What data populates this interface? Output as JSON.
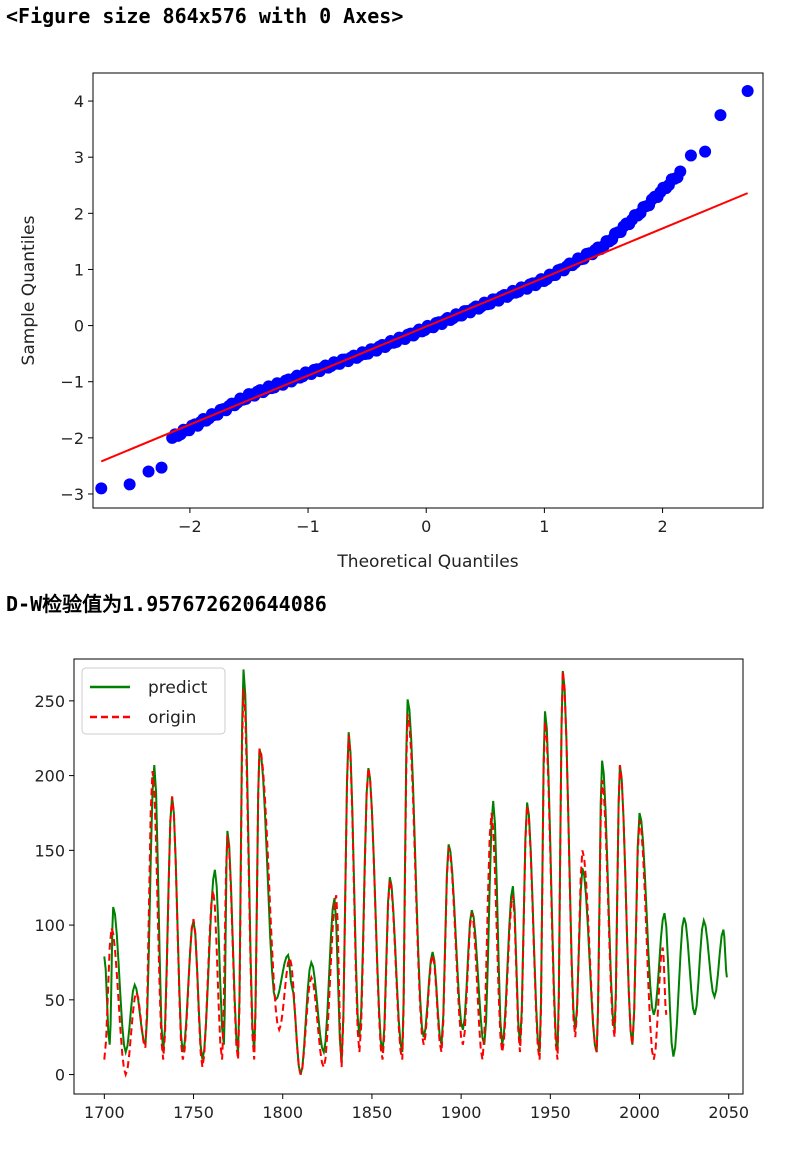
{
  "output": {
    "figure_text": "<Figure size 864x576 with 0 Axes>",
    "dw_text": "D-W检验值为1.957672620644086"
  },
  "chart_data": [
    {
      "type": "scatter",
      "xlabel": "Theoretical Quantiles",
      "ylabel": "Sample Quantiles",
      "xlim": [
        -2.82,
        2.85
      ],
      "ylim": [
        -3.25,
        4.5
      ],
      "xticks": [
        -2,
        -1,
        0,
        1,
        2
      ],
      "yticks": [
        -3,
        -2,
        -1,
        0,
        1,
        2,
        3,
        4
      ],
      "grid": false,
      "points_color": "#0000ff",
      "line_color": "#ff0000",
      "reference_line": {
        "x": [
          -2.75,
          2.72
        ],
        "y": [
          -2.42,
          2.36
        ]
      },
      "tail_points": {
        "x": [
          -2.75,
          -2.51,
          -2.35,
          -2.24,
          2.24,
          2.36,
          2.49,
          2.72
        ],
        "y": [
          -2.9,
          -2.83,
          -2.6,
          -2.53,
          3.03,
          3.1,
          3.75,
          4.18
        ]
      },
      "body_quantiles": {
        "x_range": [
          -2.15,
          2.15
        ],
        "knots": [
          [
            -2.15,
            -2.0
          ],
          [
            -1.5,
            -1.25
          ],
          [
            -1.0,
            -0.85
          ],
          [
            -0.5,
            -0.48
          ],
          [
            0.0,
            -0.05
          ],
          [
            0.5,
            0.38
          ],
          [
            1.0,
            0.82
          ],
          [
            1.5,
            1.42
          ],
          [
            1.8,
            2.0
          ],
          [
            2.15,
            2.72
          ]
        ]
      }
    },
    {
      "type": "line",
      "xlim": [
        1683,
        2058
      ],
      "ylim": [
        -13,
        278
      ],
      "xticks": [
        1700,
        1750,
        1800,
        1850,
        1900,
        1950,
        2000,
        2050
      ],
      "yticks": [
        0,
        50,
        100,
        150,
        200,
        250
      ],
      "legend_position": "upper left",
      "series": [
        {
          "name": "predict",
          "color": "#008000",
          "style": "solid",
          "peaks": [
            [
              1700,
              79
            ],
            [
              1705,
              112
            ],
            [
              1717,
              60
            ],
            [
              1728,
              207
            ],
            [
              1738,
              186
            ],
            [
              1750,
              103
            ],
            [
              1762,
              137
            ],
            [
              1769,
              163
            ],
            [
              1778,
              271
            ],
            [
              1787,
              218
            ],
            [
              1803,
              80
            ],
            [
              1805,
              60
            ],
            [
              1816,
              75
            ],
            [
              1829,
              118
            ],
            [
              1837,
              229
            ],
            [
              1848,
              205
            ],
            [
              1860,
              132
            ],
            [
              1870,
              251
            ],
            [
              1884,
              82
            ],
            [
              1893,
              154
            ],
            [
              1906,
              110
            ],
            [
              1918,
              183
            ],
            [
              1929,
              126
            ],
            [
              1937,
              182
            ],
            [
              1947,
              243
            ],
            [
              1957,
              270
            ],
            [
              1968,
              138
            ],
            [
              1979,
              210
            ],
            [
              1989,
              207
            ],
            [
              2000,
              175
            ],
            [
              2014,
              108
            ],
            [
              2025,
              105
            ],
            [
              2036,
              103
            ],
            [
              2047,
              97
            ]
          ],
          "troughs": [
            [
              1703,
              20
            ],
            [
              1712,
              15
            ],
            [
              1723,
              20
            ],
            [
              1733,
              15
            ],
            [
              1744,
              15
            ],
            [
              1755,
              10
            ],
            [
              1767,
              20
            ],
            [
              1775,
              15
            ],
            [
              1784,
              15
            ],
            [
              1796,
              50
            ],
            [
              1810,
              0
            ],
            [
              1823,
              15
            ],
            [
              1833,
              8
            ],
            [
              1843,
              25
            ],
            [
              1856,
              15
            ],
            [
              1867,
              15
            ],
            [
              1879,
              25
            ],
            [
              1889,
              20
            ],
            [
              1901,
              30
            ],
            [
              1913,
              20
            ],
            [
              1923,
              20
            ],
            [
              1933,
              20
            ],
            [
              1944,
              15
            ],
            [
              1954,
              15
            ],
            [
              1964,
              30
            ],
            [
              1976,
              15
            ],
            [
              1986,
              30
            ],
            [
              1996,
              20
            ],
            [
              2008,
              40
            ],
            [
              2019,
              12
            ],
            [
              2031,
              40
            ],
            [
              2042,
              52
            ],
            [
              2049,
              65
            ]
          ]
        },
        {
          "name": "origin",
          "color": "#ff0000",
          "style": "dashed",
          "peaks": [
            [
              1704,
              98
            ],
            [
              1718,
              55
            ],
            [
              1727,
              203
            ],
            [
              1738,
              186
            ],
            [
              1750,
              104
            ],
            [
              1761,
              123
            ],
            [
              1769,
              160
            ],
            [
              1778,
              258
            ],
            [
              1787,
              218
            ],
            [
              1804,
              78
            ],
            [
              1816,
              65
            ],
            [
              1830,
              120
            ],
            [
              1837,
              227
            ],
            [
              1848,
              205
            ],
            [
              1860,
              130
            ],
            [
              1870,
              241
            ],
            [
              1884,
              80
            ],
            [
              1893,
              152
            ],
            [
              1906,
              108
            ],
            [
              1917,
              175
            ],
            [
              1929,
              120
            ],
            [
              1937,
              180
            ],
            [
              1947,
              236
            ],
            [
              1957,
              270
            ],
            [
              1968,
              150
            ],
            [
              1979,
              197
            ],
            [
              1989,
              207
            ],
            [
              2000,
              170
            ],
            [
              2013,
              85
            ]
          ],
          "troughs": [
            [
              1700,
              10
            ],
            [
              1712,
              0
            ],
            [
              1723,
              18
            ],
            [
              1733,
              10
            ],
            [
              1744,
              10
            ],
            [
              1755,
              5
            ],
            [
              1766,
              10
            ],
            [
              1775,
              10
            ],
            [
              1784,
              10
            ],
            [
              1798,
              30
            ],
            [
              1810,
              0
            ],
            [
              1823,
              5
            ],
            [
              1833,
              5
            ],
            [
              1843,
              15
            ],
            [
              1856,
              10
            ],
            [
              1867,
              10
            ],
            [
              1879,
              20
            ],
            [
              1889,
              15
            ],
            [
              1901,
              20
            ],
            [
              1912,
              10
            ],
            [
              1923,
              15
            ],
            [
              1933,
              15
            ],
            [
              1944,
              10
            ],
            [
              1954,
              10
            ],
            [
              1964,
              25
            ],
            [
              1976,
              15
            ],
            [
              1986,
              25
            ],
            [
              1996,
              20
            ],
            [
              2008,
              10
            ],
            [
              2015,
              40
            ]
          ]
        }
      ]
    }
  ]
}
